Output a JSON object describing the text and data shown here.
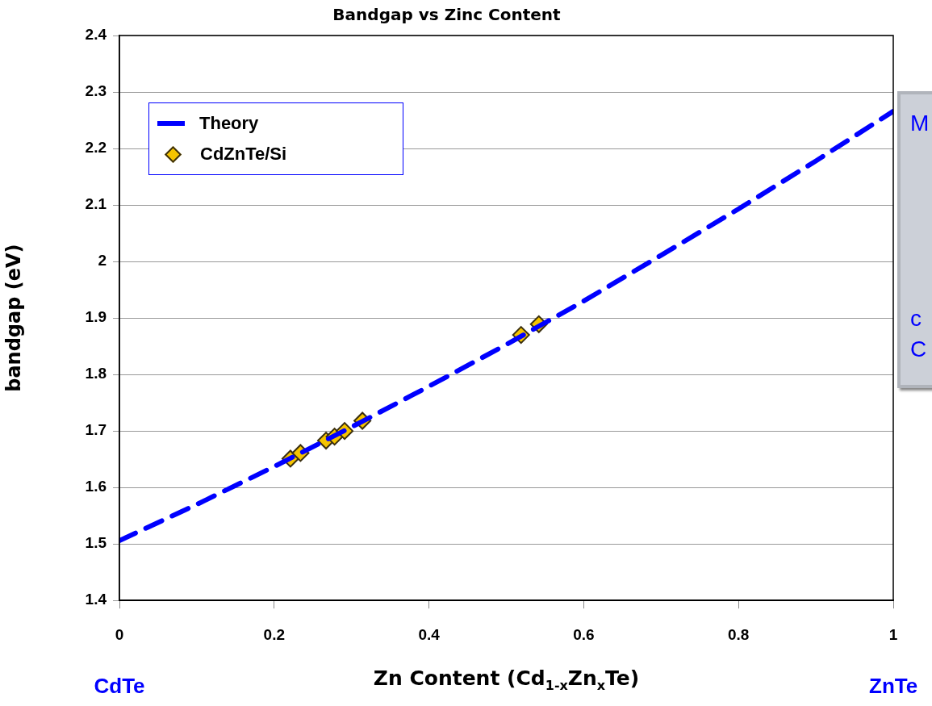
{
  "chart_data": {
    "type": "line",
    "title": "Bandgap vs Zinc Content",
    "xlabel": "Zn Content (Cd$_{1-x}$Zn$_{x}$Te)",
    "ylabel": "bandgap (eV)",
    "xlim": [
      0,
      1
    ],
    "xticks": [
      0,
      0.2,
      0.4,
      0.6,
      0.8,
      1
    ],
    "ylim": [
      1.4,
      2.4
    ],
    "yticks": [
      1.4,
      1.5,
      1.6,
      1.7,
      1.8,
      1.9,
      2,
      2.1,
      2.2,
      2.3,
      2.4
    ],
    "grid": "y",
    "legend": "top left",
    "series": [
      {
        "name": "Theory",
        "type": "line",
        "color": "#0000ff",
        "line_style": "dashed",
        "marker": "none",
        "x": [
          0,
          0.1,
          0.2,
          0.3,
          0.4,
          0.5,
          0.6,
          0.7,
          0.8,
          0.9,
          1
        ],
        "values": [
          1.506,
          1.57,
          1.637,
          1.707,
          1.779,
          1.853,
          1.93,
          2.011,
          2.093,
          2.178,
          2.266
        ]
      },
      {
        "name": "CdZnTe/Si",
        "type": "scatter",
        "color": "#f5c400",
        "marker": "diamond",
        "x": [
          0.221,
          0.234,
          0.267,
          0.278,
          0.291,
          0.314,
          0.519,
          0.542
        ],
        "values": [
          1.651,
          1.661,
          1.683,
          1.69,
          1.7,
          1.718,
          1.87,
          1.889
        ]
      }
    ],
    "annotations": [
      "CdTe",
      "ZnTe",
      "M",
      "c",
      "C"
    ]
  }
}
